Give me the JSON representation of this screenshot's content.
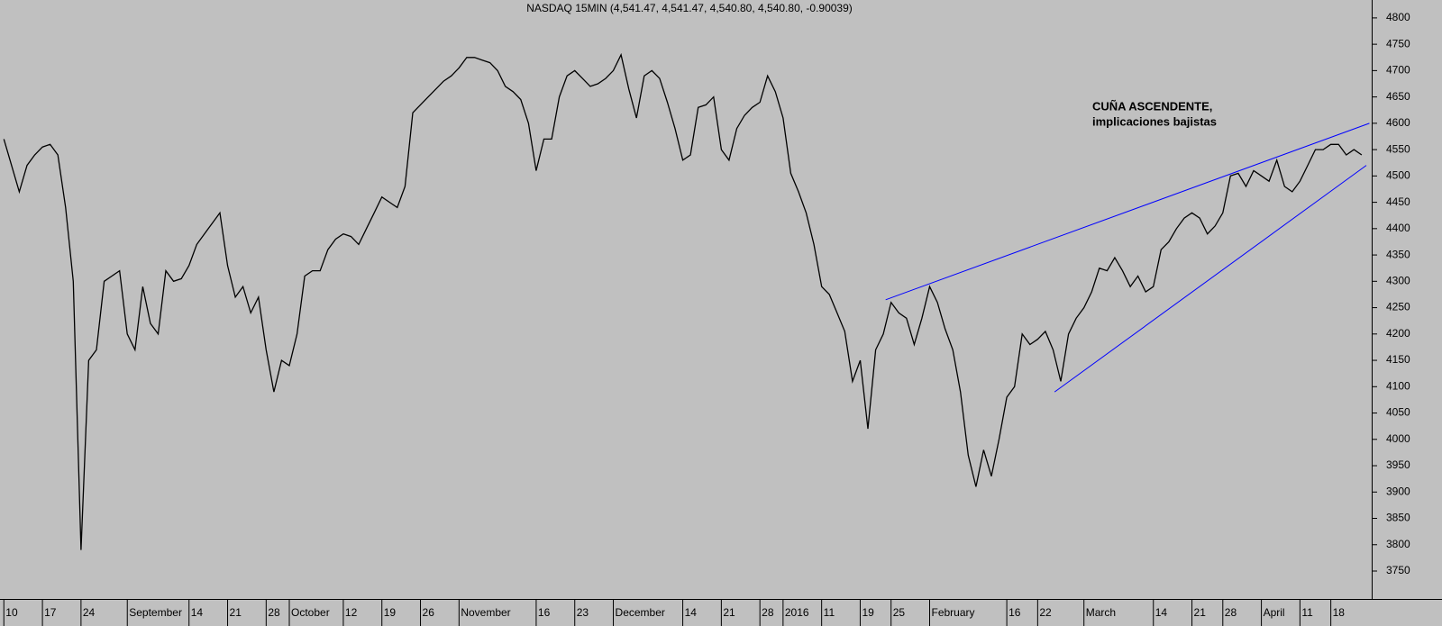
{
  "chart_data": {
    "type": "line",
    "title": "NASDAQ 15MIN (4,541.47, 4,541.47, 4,540.80, 4,540.80, -0.90039)",
    "color": "#000000",
    "x": [
      0,
      1,
      2,
      3,
      4,
      5,
      6,
      7,
      8,
      9,
      10,
      11,
      12,
      13,
      14,
      15,
      16,
      17,
      18,
      19,
      20,
      21,
      22,
      23,
      24,
      25,
      26,
      27,
      28,
      29,
      30,
      31,
      32,
      33,
      34,
      35,
      36,
      37,
      38,
      39,
      40,
      41,
      42,
      43,
      44,
      45,
      46,
      47,
      48,
      49,
      50,
      51,
      52,
      53,
      54,
      55,
      56,
      57,
      58,
      59,
      60,
      61,
      62,
      63,
      64,
      65,
      66,
      67,
      68,
      69,
      70,
      71,
      72,
      73,
      74,
      75,
      76,
      77,
      78,
      79,
      80,
      81,
      82,
      83,
      84,
      85,
      86,
      87,
      88,
      89,
      90,
      91,
      92,
      93,
      94,
      95,
      96,
      97,
      98,
      99,
      100,
      101,
      102,
      103,
      104,
      105,
      106,
      107,
      108,
      109,
      110,
      111,
      112,
      113,
      114,
      115,
      116,
      117,
      118,
      119,
      120,
      121,
      122,
      123,
      124,
      125,
      126,
      127,
      128,
      129,
      130,
      131,
      132,
      133,
      134,
      135,
      136,
      137,
      138,
      139,
      140,
      141,
      142,
      143,
      144,
      145,
      146,
      147,
      148,
      149,
      150,
      151,
      152,
      153,
      154,
      155,
      156,
      157,
      158,
      159,
      160,
      161,
      162,
      163,
      164,
      165,
      166,
      167,
      168,
      169,
      170,
      171,
      172,
      173,
      174,
      175,
      176
    ],
    "values": [
      4570,
      4520,
      4470,
      4520,
      4540,
      4555,
      4560,
      4540,
      4440,
      4300,
      3790,
      4150,
      4170,
      4300,
      4310,
      4320,
      4200,
      4170,
      4290,
      4220,
      4200,
      4320,
      4300,
      4305,
      4330,
      4370,
      4390,
      4410,
      4430,
      4330,
      4270,
      4290,
      4240,
      4270,
      4170,
      4090,
      4150,
      4140,
      4200,
      4310,
      4320,
      4320,
      4360,
      4380,
      4390,
      4385,
      4370,
      4400,
      4430,
      4460,
      4450,
      4440,
      4480,
      4620,
      4635,
      4650,
      4665,
      4680,
      4690,
      4705,
      4725,
      4725,
      4720,
      4715,
      4700,
      4670,
      4660,
      4645,
      4600,
      4510,
      4570,
      4570,
      4650,
      4690,
      4700,
      4685,
      4670,
      4675,
      4685,
      4700,
      4730,
      4665,
      4610,
      4690,
      4700,
      4685,
      4640,
      4590,
      4530,
      4540,
      4630,
      4635,
      4650,
      4550,
      4530,
      4590,
      4615,
      4630,
      4640,
      4690,
      4660,
      4610,
      4505,
      4470,
      4430,
      4370,
      4290,
      4275,
      4240,
      4205,
      4110,
      4150,
      4020,
      4170,
      4200,
      4260,
      4240,
      4230,
      4180,
      4230,
      4290,
      4260,
      4210,
      4170,
      4090,
      3970,
      3910,
      3980,
      3930,
      4000,
      4080,
      4100,
      4200,
      4180,
      4190,
      4205,
      4170,
      4110,
      4200,
      4230,
      4250,
      4280,
      4325,
      4320,
      4345,
      4320,
      4290,
      4310,
      4280,
      4290,
      4360,
      4375,
      4400,
      4420,
      4430,
      4420,
      4390,
      4405,
      4430,
      4500,
      4505,
      4480,
      4510,
      4500,
      4490,
      4530,
      4480,
      4470,
      4490,
      4520,
      4550,
      4550,
      4560,
      4560,
      4540,
      4550,
      4540
    ],
    "xlim": [
      -0.5,
      177.3
    ],
    "xticks": [
      {
        "value": 0,
        "label": "10"
      },
      {
        "value": 5,
        "label": "17"
      },
      {
        "value": 10,
        "label": "24"
      },
      {
        "value": 16,
        "label": "September"
      },
      {
        "value": 24,
        "label": "14"
      },
      {
        "value": 29,
        "label": "21"
      },
      {
        "value": 34,
        "label": "28"
      },
      {
        "value": 37,
        "label": "October"
      },
      {
        "value": 44,
        "label": "12"
      },
      {
        "value": 49,
        "label": "19"
      },
      {
        "value": 54,
        "label": "26"
      },
      {
        "value": 59,
        "label": "November"
      },
      {
        "value": 69,
        "label": "16"
      },
      {
        "value": 74,
        "label": "23"
      },
      {
        "value": 79,
        "label": "December"
      },
      {
        "value": 88,
        "label": "14"
      },
      {
        "value": 93,
        "label": "21"
      },
      {
        "value": 98,
        "label": "28"
      },
      {
        "value": 101,
        "label": "2016"
      },
      {
        "value": 106,
        "label": "11"
      },
      {
        "value": 111,
        "label": "19"
      },
      {
        "value": 115,
        "label": "25"
      },
      {
        "value": 120,
        "label": "February"
      },
      {
        "value": 130,
        "label": "16"
      },
      {
        "value": 134,
        "label": "22"
      },
      {
        "value": 140,
        "label": "March"
      },
      {
        "value": 149,
        "label": "14"
      },
      {
        "value": 154,
        "label": "21"
      },
      {
        "value": 158,
        "label": "28"
      },
      {
        "value": 163,
        "label": "April"
      },
      {
        "value": 168,
        "label": "11"
      },
      {
        "value": 172,
        "label": "18"
      }
    ],
    "ylim": [
      3697,
      4834
    ],
    "yticks": [
      3750,
      3800,
      3850,
      3900,
      3950,
      4000,
      4050,
      4100,
      4150,
      4200,
      4250,
      4300,
      4350,
      4400,
      4450,
      4500,
      4550,
      4600,
      4650,
      4700,
      4750,
      4800
    ],
    "annotations": [
      "CUÑA ASCENDENTE,",
      "implicaciones bajistas"
    ],
    "annotation_color": "#0000ff",
    "trendlines": [
      {
        "x": [
          114.3,
          177
        ],
        "y": [
          4265,
          4600
        ],
        "color": "#0000ff"
      },
      {
        "x": [
          136.2,
          176.6
        ],
        "y": [
          4090,
          4520
        ],
        "color": "#0000ff"
      }
    ]
  }
}
